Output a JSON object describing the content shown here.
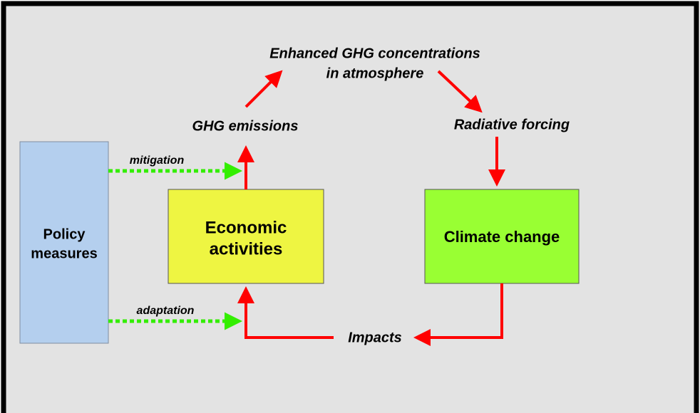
{
  "nodes": [
    {
      "lines": [
        "Policy",
        "measures"
      ]
    },
    {
      "lines": [
        "Economic",
        "activities"
      ]
    },
    {
      "lines": [
        "Climate change"
      ]
    }
  ],
  "labels": {
    "concentrations": [
      "Enhanced GHG concentrations",
      "in atmosphere"
    ],
    "emissions": "GHG emissions",
    "forcing": "Radiative forcing",
    "impacts": "Impacts",
    "mitigation": "mitigation",
    "adaptation": "adaptation"
  }
}
